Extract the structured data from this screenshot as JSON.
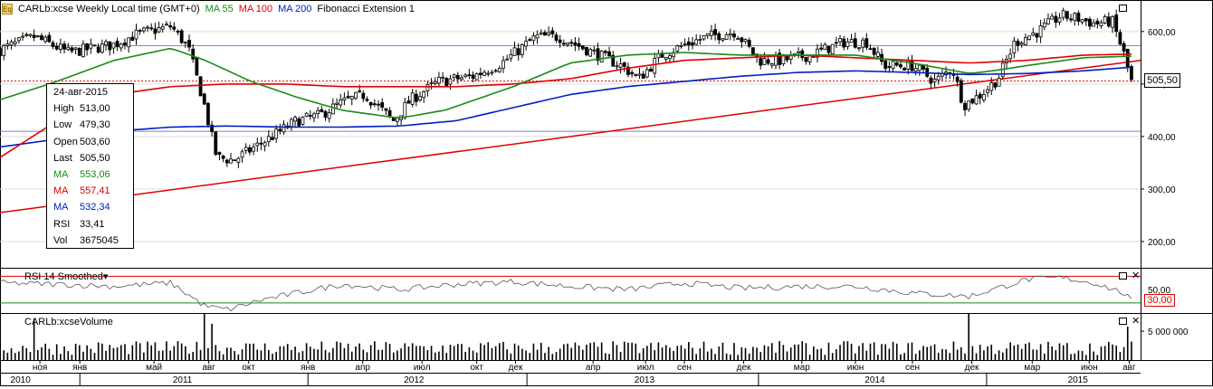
{
  "header": {
    "icon_label": "Eq",
    "symbol": "CARLb:xcse Weekly Local time (GMT+0)",
    "ma55": "MA 55",
    "ma100": "MA 100",
    "ma200": "MA 200",
    "fib": "Fibonacci Extension 1"
  },
  "colors": {
    "ma55": "#1a8a1a",
    "ma100": "#e00000",
    "ma200": "#0020c0",
    "trend": "#e00000"
  },
  "info": {
    "date": "24-авг-2015",
    "rows": [
      {
        "k": "High",
        "v": "513,00",
        "color": "#000000"
      },
      {
        "k": "Low",
        "v": "479,30",
        "color": "#000000"
      },
      {
        "k": "Open",
        "v": "503,60",
        "color": "#000000"
      },
      {
        "k": "Last",
        "v": "505,50",
        "color": "#000000"
      },
      {
        "k": "MA",
        "v": "553,06",
        "color": "#1a8a1a"
      },
      {
        "k": "MA",
        "v": "557,41",
        "color": "#e00000"
      },
      {
        "k": "MA",
        "v": "532,34",
        "color": "#0020c0"
      },
      {
        "k": "RSI",
        "v": "33,41",
        "color": "#000000"
      },
      {
        "k": "Vol",
        "v": "3675045",
        "color": "#000000"
      }
    ]
  },
  "price_tag": "505,50",
  "rsi_pane": {
    "label": "RSI 14 Smoothed",
    "tick": "50,00",
    "tag": "30,00"
  },
  "vol_pane": {
    "label": "CARLb:xcseVolume",
    "tick": "5 000 000"
  },
  "chart_data": {
    "type": "candlestick",
    "title": "CARLb:xcse Weekly Local time (GMT+0)",
    "price_ticks": [
      "600,00",
      "500,00",
      "400,00",
      "300,00",
      "200,00"
    ],
    "price_tick_values": [
      600,
      500,
      400,
      300,
      200
    ],
    "price_range": [
      150,
      660
    ],
    "month_labels": [
      {
        "label": "ноя",
        "t": 0.035
      },
      {
        "label": "янв",
        "t": 0.07
      },
      {
        "label": "май",
        "t": 0.135
      },
      {
        "label": "авг",
        "t": 0.183
      },
      {
        "label": "окт",
        "t": 0.218
      },
      {
        "label": "янв",
        "t": 0.27
      },
      {
        "label": "апр",
        "t": 0.318
      },
      {
        "label": "июл",
        "t": 0.37
      },
      {
        "label": "окт",
        "t": 0.418
      },
      {
        "label": "дек",
        "t": 0.452
      },
      {
        "label": "апр",
        "t": 0.52
      },
      {
        "label": "июл",
        "t": 0.566
      },
      {
        "label": "сен",
        "t": 0.6
      },
      {
        "label": "дек",
        "t": 0.652
      },
      {
        "label": "мар",
        "t": 0.703
      },
      {
        "label": "июн",
        "t": 0.75
      },
      {
        "label": "сен",
        "t": 0.8
      },
      {
        "label": "дек",
        "t": 0.852
      },
      {
        "label": "мар",
        "t": 0.905
      },
      {
        "label": "июн",
        "t": 0.955
      },
      {
        "label": "авг",
        "t": 0.99
      }
    ],
    "year_labels": [
      {
        "label": "2010",
        "t": 0.018
      },
      {
        "label": "2011",
        "t": 0.16
      },
      {
        "label": "2012",
        "t": 0.363
      },
      {
        "label": "2013",
        "t": 0.565
      },
      {
        "label": "2014",
        "t": 0.767
      },
      {
        "label": "2015",
        "t": 0.945
      }
    ],
    "close_anchors": [
      [
        0.0,
        565
      ],
      [
        0.03,
        590
      ],
      [
        0.06,
        560
      ],
      [
        0.1,
        575
      ],
      [
        0.12,
        595
      ],
      [
        0.15,
        610
      ],
      [
        0.165,
        570
      ],
      [
        0.178,
        470
      ],
      [
        0.19,
        360
      ],
      [
        0.205,
        355
      ],
      [
        0.235,
        395
      ],
      [
        0.26,
        430
      ],
      [
        0.28,
        440
      ],
      [
        0.3,
        465
      ],
      [
        0.32,
        480
      ],
      [
        0.345,
        430
      ],
      [
        0.36,
        470
      ],
      [
        0.385,
        505
      ],
      [
        0.415,
        515
      ],
      [
        0.44,
        540
      ],
      [
        0.47,
        590
      ],
      [
        0.49,
        590
      ],
      [
        0.52,
        560
      ],
      [
        0.545,
        535
      ],
      [
        0.56,
        510
      ],
      [
        0.58,
        555
      ],
      [
        0.6,
        575
      ],
      [
        0.62,
        590
      ],
      [
        0.645,
        600
      ],
      [
        0.665,
        545
      ],
      [
        0.685,
        545
      ],
      [
        0.71,
        555
      ],
      [
        0.74,
        580
      ],
      [
        0.76,
        580
      ],
      [
        0.775,
        535
      ],
      [
        0.8,
        535
      ],
      [
        0.82,
        505
      ],
      [
        0.835,
        530
      ],
      [
        0.845,
        460
      ],
      [
        0.86,
        480
      ],
      [
        0.875,
        510
      ],
      [
        0.89,
        580
      ],
      [
        0.91,
        600
      ],
      [
        0.93,
        630
      ],
      [
        0.945,
        625
      ],
      [
        0.96,
        615
      ],
      [
        0.975,
        620
      ],
      [
        0.985,
        560
      ],
      [
        0.992,
        505
      ]
    ],
    "ma55_anchors": [
      [
        0.0,
        470
      ],
      [
        0.05,
        505
      ],
      [
        0.1,
        545
      ],
      [
        0.15,
        568
      ],
      [
        0.18,
        545
      ],
      [
        0.22,
        505
      ],
      [
        0.26,
        475
      ],
      [
        0.3,
        450
      ],
      [
        0.35,
        435
      ],
      [
        0.39,
        450
      ],
      [
        0.45,
        495
      ],
      [
        0.5,
        540
      ],
      [
        0.55,
        555
      ],
      [
        0.6,
        560
      ],
      [
        0.65,
        555
      ],
      [
        0.7,
        555
      ],
      [
        0.75,
        555
      ],
      [
        0.8,
        540
      ],
      [
        0.85,
        520
      ],
      [
        0.87,
        525
      ],
      [
        0.9,
        535
      ],
      [
        0.95,
        550
      ],
      [
        0.992,
        553
      ]
    ],
    "ma100_anchors": [
      [
        0.0,
        360
      ],
      [
        0.05,
        430
      ],
      [
        0.1,
        480
      ],
      [
        0.15,
        495
      ],
      [
        0.2,
        500
      ],
      [
        0.25,
        500
      ],
      [
        0.3,
        495
      ],
      [
        0.35,
        495
      ],
      [
        0.4,
        495
      ],
      [
        0.45,
        500
      ],
      [
        0.5,
        510
      ],
      [
        0.55,
        530
      ],
      [
        0.6,
        545
      ],
      [
        0.65,
        550
      ],
      [
        0.7,
        555
      ],
      [
        0.75,
        550
      ],
      [
        0.8,
        545
      ],
      [
        0.85,
        540
      ],
      [
        0.9,
        545
      ],
      [
        0.95,
        555
      ],
      [
        0.992,
        557
      ]
    ],
    "ma200_anchors": [
      [
        0.0,
        380
      ],
      [
        0.05,
        395
      ],
      [
        0.1,
        410
      ],
      [
        0.15,
        418
      ],
      [
        0.2,
        420
      ],
      [
        0.25,
        418
      ],
      [
        0.3,
        418
      ],
      [
        0.35,
        420
      ],
      [
        0.4,
        430
      ],
      [
        0.45,
        455
      ],
      [
        0.5,
        480
      ],
      [
        0.55,
        495
      ],
      [
        0.6,
        505
      ],
      [
        0.65,
        515
      ],
      [
        0.7,
        522
      ],
      [
        0.75,
        525
      ],
      [
        0.8,
        522
      ],
      [
        0.85,
        518
      ],
      [
        0.9,
        520
      ],
      [
        0.95,
        525
      ],
      [
        0.992,
        532
      ]
    ],
    "trendline": [
      [
        0.0,
        255
      ],
      [
        1.0,
        545
      ]
    ],
    "h_lines": [
      {
        "value": 573,
        "color": "#8080ff",
        "style": "solid"
      },
      {
        "value": 505.5,
        "color": "#e00000",
        "style": "dotted"
      },
      {
        "value": 410,
        "color": "#8080c0",
        "style": "solid"
      }
    ],
    "volume_tick_value": 5000000,
    "volume_range": [
      0,
      8000000
    ],
    "volume_typical": 2200000,
    "volume_spikes": [
      [
        0.03,
        7200000
      ],
      [
        0.18,
        9800000
      ],
      [
        0.185,
        6300000
      ],
      [
        0.85,
        8800000
      ],
      [
        0.99,
        5800000
      ]
    ],
    "rsi_range": [
      15,
      80
    ],
    "rsi_levels": [
      70,
      30
    ],
    "rsi_anchors": [
      [
        0.0,
        60
      ],
      [
        0.05,
        58
      ],
      [
        0.1,
        55
      ],
      [
        0.15,
        60
      ],
      [
        0.18,
        25
      ],
      [
        0.2,
        20
      ],
      [
        0.23,
        35
      ],
      [
        0.3,
        58
      ],
      [
        0.35,
        50
      ],
      [
        0.4,
        58
      ],
      [
        0.45,
        62
      ],
      [
        0.5,
        55
      ],
      [
        0.55,
        50
      ],
      [
        0.6,
        60
      ],
      [
        0.65,
        52
      ],
      [
        0.7,
        55
      ],
      [
        0.75,
        55
      ],
      [
        0.8,
        45
      ],
      [
        0.85,
        40
      ],
      [
        0.9,
        65
      ],
      [
        0.93,
        68
      ],
      [
        0.96,
        60
      ],
      [
        0.985,
        45
      ],
      [
        0.992,
        33
      ]
    ]
  }
}
